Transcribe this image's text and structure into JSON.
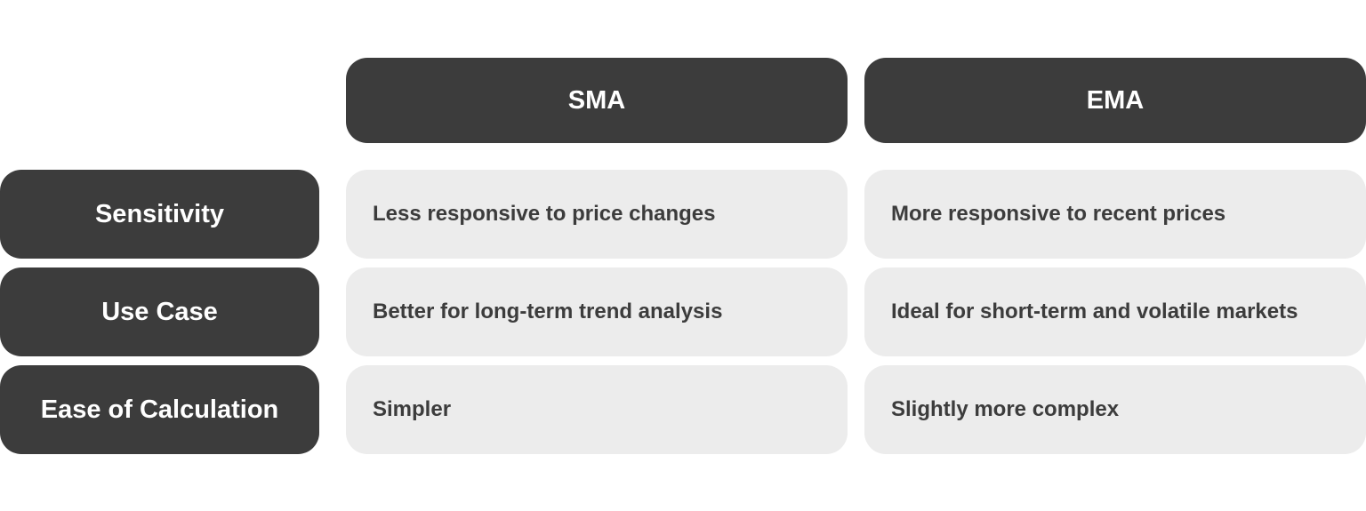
{
  "table": {
    "header": [
      "SMA",
      "EMA"
    ],
    "rows": [
      [
        "Sensitivity",
        "Less responsive to price changes",
        "More responsive to recent prices"
      ],
      [
        "Use Case",
        "Better for long-term trend analysis",
        "Ideal for short-term and volatile markets"
      ],
      [
        "Ease of Calculation",
        "Simpler",
        "Slightly more complex"
      ]
    ]
  }
}
